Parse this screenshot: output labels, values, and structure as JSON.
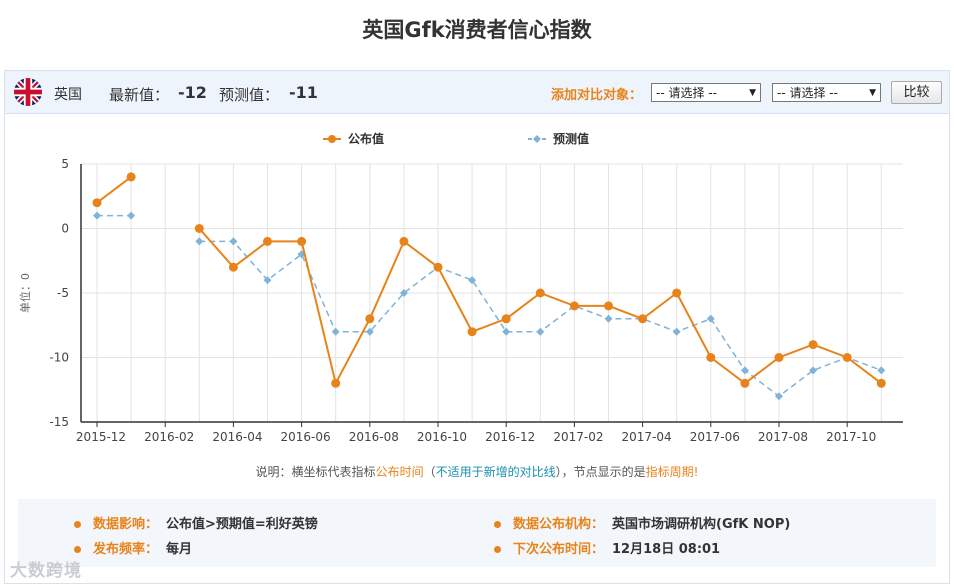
{
  "title": "英国Gfk消费者信心指数",
  "toolbar": {
    "country": "英国",
    "latest_label": "最新值：",
    "latest_value": "-12",
    "forecast_label": "预测值：",
    "forecast_value": "-11",
    "compare_label": "添加对比对象：",
    "select1": "-- 请选择 --",
    "select2": "-- 请选择 --",
    "compare_button": "比较"
  },
  "note": {
    "prefix": "说明：横坐标代表指标",
    "pub_time": "公布时间",
    "paren_open": "（",
    "not_applicable": "不适用于新增的对比线",
    "paren_close": "），节点显示的是",
    "period": "指标周期",
    "end": "!"
  },
  "info": {
    "impact_label": "数据影响：",
    "impact_value": "公布值>预期值=利好英镑",
    "agency_label": "数据公布机构：",
    "agency_value": "英国市场调研机构(GfK NOP)",
    "freq_label": "发布频率：",
    "freq_value": "每月",
    "next_label": "下次公布时间：",
    "next_value": "12月18日 08:01"
  },
  "watermark": "大数跨境",
  "colors": {
    "actual": "#e8831c",
    "forecast": "#7fb3d8",
    "accent": "#e8831c"
  },
  "chart_data": {
    "type": "line",
    "ylabel": "单位：0",
    "ylim": [
      -15,
      5
    ],
    "yticks": [
      5,
      0,
      -5,
      -10,
      -15
    ],
    "x_labels": [
      "2015-12",
      "2016-02",
      "2016-04",
      "2016-06",
      "2016-08",
      "2016-10",
      "2016-12",
      "2017-02",
      "2017-04",
      "2017-06",
      "2017-08",
      "2017-10"
    ],
    "x": [
      "2015-12",
      "2016-01",
      "2016-02",
      "2016-03",
      "2016-04",
      "2016-05",
      "2016-06",
      "2016-07",
      "2016-08",
      "2016-09",
      "2016-10",
      "2016-11",
      "2016-12",
      "2017-01",
      "2017-02",
      "2017-03",
      "2017-04",
      "2017-05",
      "2017-06",
      "2017-07",
      "2017-08",
      "2017-09",
      "2017-10",
      "2017-11"
    ],
    "grid": true,
    "legend_position": "top-center",
    "series": [
      {
        "name": "公布值",
        "values": [
          2,
          4,
          null,
          0,
          -3,
          -1,
          -1,
          -12,
          -7,
          -1,
          -3,
          -8,
          -7,
          -5,
          -6,
          -6,
          -7,
          -5,
          -10,
          -12,
          -10,
          -9,
          -10,
          -12
        ]
      },
      {
        "name": "预测值",
        "values": [
          1,
          1,
          null,
          -1,
          -1,
          -4,
          -2,
          -8,
          -8,
          -5,
          -3,
          -4,
          -8,
          -8,
          -6,
          -7,
          -7,
          -8,
          -7,
          -11,
          -13,
          -11,
          -10,
          -11
        ]
      }
    ]
  }
}
